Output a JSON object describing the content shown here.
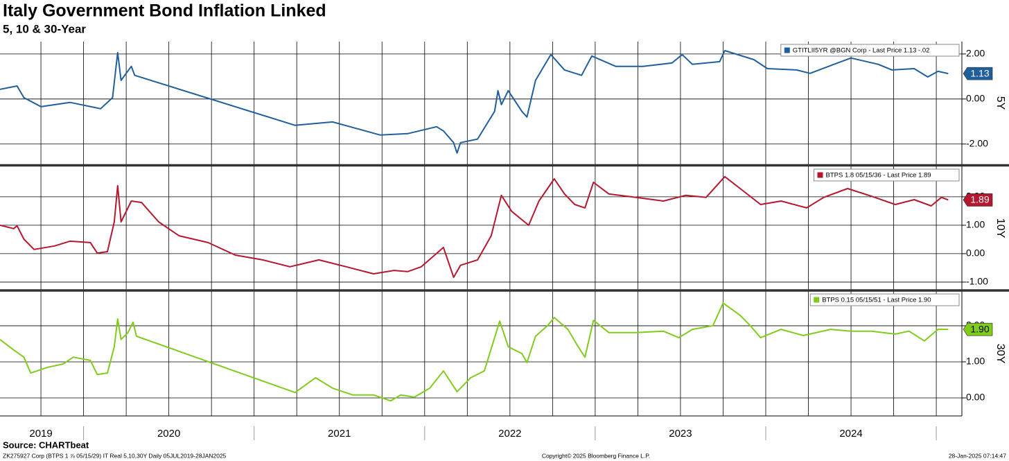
{
  "title": "Italy Government Bond Inflation Linked",
  "subtitle": "5, 10 & 30-Year",
  "source": "Source: CHARTbeat",
  "footer_left": "ZK275927 Corp (BTPS 1 ⅞ 05/15/29) IT Real 5,10,30Y  Daily 05JUL2019-28JAN2025",
  "copyright": "Copyright© 2025 Bloomberg Finance L.P.",
  "timestamp": "28-Jan-2025 07:14:47",
  "x_axis": {
    "xlim": [
      2019.51,
      2025.15
    ],
    "xgrid": [
      2019.75,
      2020,
      2020.25,
      2020.5,
      2020.75,
      2021,
      2021.25,
      2021.5,
      2021.75,
      2022,
      2022.25,
      2022.5,
      2022.75,
      2023,
      2023.25,
      2023.5,
      2023.75,
      2024,
      2024.25,
      2024.5,
      2024.75,
      2025
    ],
    "xticks": [
      {
        "value": 2019.75,
        "label": "2019"
      },
      {
        "value": 2020.5,
        "label": "2020"
      },
      {
        "value": 2021.5,
        "label": "2021"
      },
      {
        "value": 2022.5,
        "label": "2022"
      },
      {
        "value": 2023.5,
        "label": "2023"
      },
      {
        "value": 2024.5,
        "label": "2024"
      }
    ]
  },
  "chart_data": [
    {
      "type": "line",
      "axis_label": "5Y",
      "ylim": [
        -2.9,
        2.55
      ],
      "yticks": [
        {
          "value": 2,
          "label": "2.00"
        },
        {
          "value": 0,
          "label": "0.00"
        },
        {
          "value": -2,
          "label": "-2.00"
        }
      ],
      "last_price": {
        "value": 1.13,
        "label": "1.13"
      },
      "x": [
        2019.51,
        2019.61,
        2019.65,
        2019.75,
        2019.92,
        2020.1,
        2020.17,
        2020.2,
        2020.22,
        2020.28,
        2020.3,
        2021.24,
        2021.46,
        2021.62,
        2021.74,
        2021.9,
        2022.07,
        2022.11,
        2022.17,
        2022.19,
        2022.21,
        2022.31,
        2022.41,
        2022.43,
        2022.45,
        2022.49,
        2022.57,
        2022.6,
        2022.65,
        2022.74,
        2022.82,
        2022.92,
        2022.98,
        2023.12,
        2023.28,
        2023.45,
        2023.51,
        2023.57,
        2023.73,
        2023.76,
        2023.93,
        2024.01,
        2024.18,
        2024.26,
        2024.42,
        2024.5,
        2024.66,
        2024.74,
        2024.87,
        2024.95,
        2025.01,
        2025.07
      ],
      "series": [
        {
          "name": "GTITLII5YR @BGN Corp - Last Price 1.13  -.02",
          "color": "#1f5f9e",
          "values": [
            0.43,
            0.58,
            0.06,
            -0.34,
            -0.15,
            -0.43,
            0.06,
            2.06,
            0.83,
            1.45,
            1.05,
            -1.17,
            -1.02,
            -1.35,
            -1.6,
            -1.54,
            -1.23,
            -1.42,
            -1.94,
            -2.4,
            -1.94,
            -1.78,
            -0.55,
            0.37,
            -0.25,
            0.37,
            -0.55,
            -0.8,
            0.83,
            1.97,
            1.29,
            1.05,
            1.91,
            1.45,
            1.45,
            1.6,
            1.97,
            1.54,
            1.66,
            2.15,
            1.75,
            1.35,
            1.29,
            1.14,
            1.6,
            1.82,
            1.54,
            1.29,
            1.35,
            0.98,
            1.23,
            1.13
          ]
        }
      ]
    },
    {
      "type": "line",
      "axis_label": "10Y",
      "ylim": [
        -1.27,
        3.07
      ],
      "yticks": [
        {
          "value": 2,
          "label": "2.00"
        },
        {
          "value": 1,
          "label": "1.00"
        },
        {
          "value": 0,
          "label": "0.00"
        },
        {
          "value": -1,
          "label": "-1.00"
        }
      ],
      "last_price": {
        "value": 1.89,
        "label": "1.89"
      },
      "x": [
        2019.51,
        2019.59,
        2019.61,
        2019.65,
        2019.71,
        2019.83,
        2019.92,
        2020.04,
        2020.08,
        2020.14,
        2020.18,
        2020.2,
        2020.22,
        2020.28,
        2020.34,
        2020.44,
        2020.56,
        2020.73,
        2020.89,
        2021.05,
        2021.21,
        2021.38,
        2021.54,
        2021.7,
        2021.82,
        2021.9,
        2021.98,
        2022.11,
        2022.17,
        2022.21,
        2022.31,
        2022.39,
        2022.45,
        2022.51,
        2022.61,
        2022.67,
        2022.76,
        2022.82,
        2022.88,
        2022.94,
        2022.99,
        2023.08,
        2023.24,
        2023.4,
        2023.53,
        2023.65,
        2023.76,
        2023.85,
        2023.97,
        2024.09,
        2024.24,
        2024.34,
        2024.48,
        2024.62,
        2024.76,
        2024.87,
        2024.97,
        2025.03,
        2025.07
      ],
      "series": [
        {
          "name": "BTPS 1.8 05/15/36 - Last Price 1.89",
          "color": "#b5172f",
          "values": [
            1.0,
            0.88,
            0.98,
            0.51,
            0.15,
            0.27,
            0.44,
            0.39,
            0.02,
            0.07,
            1.12,
            2.39,
            1.12,
            1.85,
            1.8,
            1.12,
            0.63,
            0.39,
            -0.05,
            -0.22,
            -0.46,
            -0.22,
            -0.46,
            -0.71,
            -0.59,
            -0.63,
            -0.46,
            0.22,
            -0.83,
            -0.41,
            -0.22,
            0.63,
            2.05,
            1.49,
            1.0,
            1.85,
            2.63,
            2.1,
            1.73,
            1.61,
            2.51,
            2.1,
            1.98,
            1.85,
            2.05,
            1.98,
            2.71,
            2.29,
            1.73,
            1.85,
            1.61,
            1.98,
            2.29,
            2.02,
            1.73,
            1.9,
            1.68,
            1.98,
            1.89
          ]
        }
      ]
    },
    {
      "type": "line",
      "axis_label": "30Y",
      "ylim": [
        -0.5,
        2.96
      ],
      "yticks": [
        {
          "value": 2,
          "label": "2.00"
        },
        {
          "value": 1,
          "label": "1.00"
        },
        {
          "value": 0,
          "label": "0.00"
        }
      ],
      "last_price": {
        "value": 1.9,
        "label": "1.90"
      },
      "x": [
        2019.51,
        2019.59,
        2019.65,
        2019.69,
        2019.79,
        2019.88,
        2019.94,
        2020.04,
        2020.08,
        2020.14,
        2020.18,
        2020.2,
        2020.22,
        2020.26,
        2020.29,
        2020.31,
        2021.24,
        2021.36,
        2021.46,
        2021.58,
        2021.7,
        2021.8,
        2021.86,
        2021.94,
        2022.03,
        2022.11,
        2022.19,
        2022.27,
        2022.35,
        2022.44,
        2022.49,
        2022.57,
        2022.6,
        2022.65,
        2022.72,
        2022.76,
        2022.84,
        2022.9,
        2022.94,
        2022.99,
        2023.08,
        2023.24,
        2023.4,
        2023.49,
        2023.57,
        2023.69,
        2023.75,
        2023.85,
        2023.91,
        2023.97,
        2024.09,
        2024.22,
        2024.38,
        2024.5,
        2024.62,
        2024.76,
        2024.84,
        2024.93,
        2025.01,
        2025.07
      ],
      "series": [
        {
          "name": "BTPS 0.15 05/15/51 - Last Price 1.90",
          "color": "#80cc1c",
          "values": [
            1.62,
            1.33,
            1.13,
            0.69,
            0.85,
            0.94,
            1.13,
            1.04,
            0.65,
            0.69,
            1.42,
            2.19,
            1.62,
            1.81,
            2.1,
            1.71,
            0.15,
            0.56,
            0.27,
            0.08,
            0.08,
            -0.08,
            0.08,
            0.02,
            0.27,
            0.75,
            0.17,
            0.56,
            0.75,
            2.13,
            1.42,
            1.23,
            0.98,
            1.71,
            2.0,
            2.23,
            1.9,
            1.42,
            1.13,
            2.15,
            1.81,
            1.81,
            1.85,
            1.67,
            1.9,
            2.0,
            2.63,
            2.29,
            2.0,
            1.67,
            1.9,
            1.73,
            1.9,
            1.85,
            1.85,
            1.77,
            1.85,
            1.58,
            1.9,
            1.9
          ]
        }
      ]
    }
  ]
}
